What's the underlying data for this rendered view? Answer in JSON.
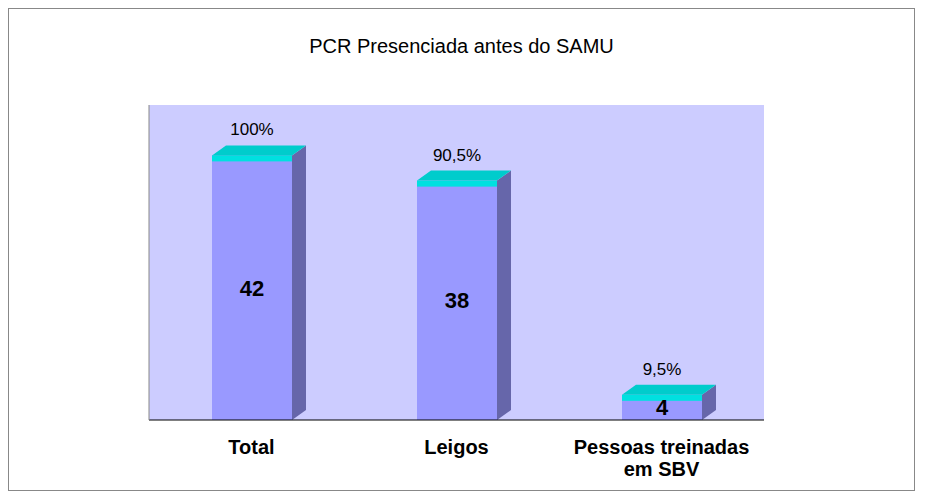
{
  "chart_data": {
    "type": "bar",
    "title": "PCR Presenciada antes do SAMU",
    "categories": [
      "Total",
      "Leigos",
      "Pessoas treinadas em SBV"
    ],
    "values": [
      42,
      38,
      4
    ],
    "percent_labels": [
      "100%",
      "90,5%",
      "9,5%"
    ],
    "color": "#9999ff",
    "ylim": [
      0,
      50
    ],
    "grid": false,
    "data_labels": true,
    "tick_labels": "x"
  }
}
